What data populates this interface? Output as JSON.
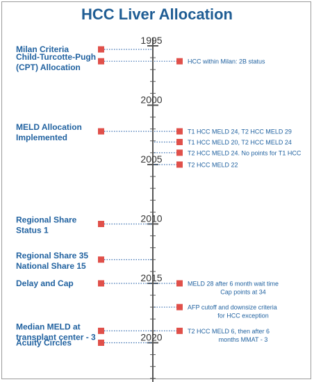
{
  "title": "HCC Liver Allocation",
  "colors": {
    "title": "#1f5d94",
    "label": "#2162a0",
    "marker": "#e0504a",
    "axis": "#555555",
    "dots": "#3a6fb0"
  },
  "axis": {
    "start_year": 1994.3,
    "end_year": 2023.3,
    "major_years": [
      1995,
      2000,
      2005,
      2010,
      2015,
      2020
    ]
  },
  "left_events": [
    {
      "year": 1995.3,
      "lines": [
        "Milan Criteria"
      ]
    },
    {
      "year": 1996.3,
      "lines": [
        "Child-Turcotte-Pugh",
        "(CPT) Allocation"
      ]
    },
    {
      "year": 2002.2,
      "lines": [
        "MELD Allocation",
        "Implemented"
      ]
    },
    {
      "year": 2010.0,
      "lines": [
        "Regional Share",
        "Status 1"
      ]
    },
    {
      "year": 2013.0,
      "lines": [
        "Regional Share 35",
        "National Share 15"
      ]
    },
    {
      "year": 2015.0,
      "lines": [
        "Delay and Cap"
      ]
    },
    {
      "year": 2019.0,
      "lines": [
        "Median MELD at",
        "transplant center - 3"
      ]
    },
    {
      "year": 2020.0,
      "lines": [
        "Acuity Circles"
      ]
    }
  ],
  "right_events": [
    {
      "year": 1996.3,
      "lines": [
        "HCC within Milan: 2B status"
      ]
    },
    {
      "year": 2002.2,
      "lines": [
        "T1 HCC MELD 24, T2 HCC MELD 29"
      ]
    },
    {
      "year": 2003.1,
      "lines": [
        "T1 HCC MELD 20, T2 HCC MELD 24"
      ]
    },
    {
      "year": 2004.0,
      "lines": [
        "T2 HCC MELD 24. No points for T1 HCC"
      ]
    },
    {
      "year": 2005.0,
      "lines": [
        "T2 HCC MELD 22"
      ]
    },
    {
      "year": 2015.0,
      "lines": [
        "MELD 28 after 6 month wait time",
        "Cap points at 34"
      ]
    },
    {
      "year": 2017.0,
      "lines": [
        "AFP cutoff and downsize criteria",
        "for HCC exception"
      ]
    },
    {
      "year": 2019.0,
      "lines": [
        "T2 HCC MELD 6, then after 6",
        "months MMAT - 3"
      ]
    }
  ]
}
